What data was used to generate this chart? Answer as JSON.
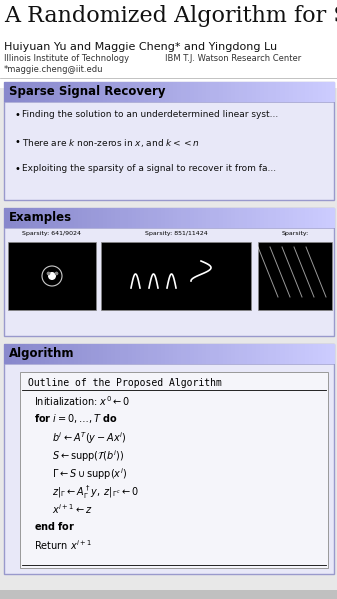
{
  "title": "A Randomized Algorithm for S",
  "authors": "Huiyuan Yu and Maggie Cheng* and Yingdong Lu",
  "affil1": "Illinois Institute of Technology",
  "affil2": "IBM T.J. Watson Research Center",
  "email": "*maggie.cheng@iit.edu",
  "section1_title": "Sparse Signal Recovery",
  "bullet1": "Finding the solution to an underdetermined linear syst...",
  "bullet2": "There are $k$ non-zeros in $x$, and $k << n$",
  "bullet3": "Exploiting the sparsity of a signal to recover it from fa...",
  "section2_title": "Examples",
  "sparsity1": "Sparsity: 641/9024",
  "sparsity2": "Sparsity: 851/11424",
  "sparsity3": "Sparsity:",
  "section3_title": "Algorithm",
  "algo_title": "Outline of the Proposed Algorithm",
  "bg_color": "#e8e8e8",
  "white": "#ffffff",
  "box_bg": "#e8e8f8",
  "header_left": "#7777cc",
  "header_right": "#ccccee",
  "border_color": "#9999cc",
  "algo_inner_bg": "#f5f5fa"
}
